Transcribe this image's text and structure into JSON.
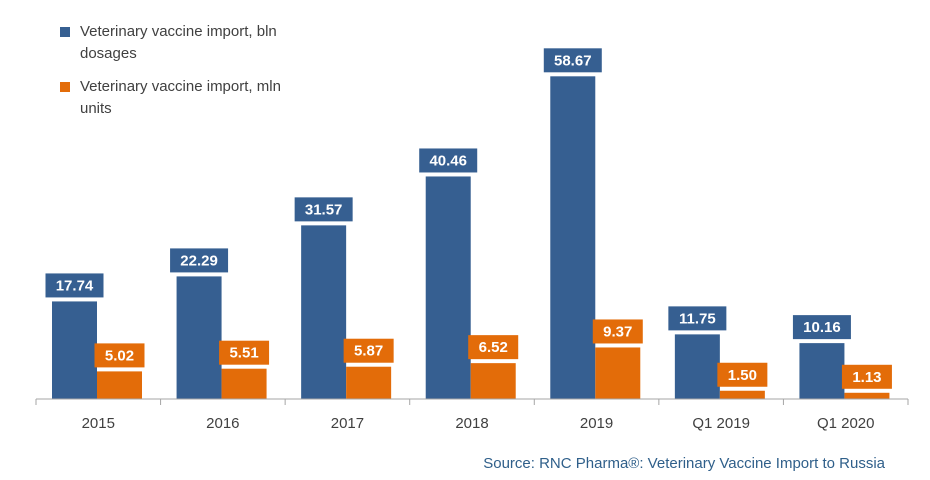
{
  "chart_data": {
    "type": "bar",
    "categories": [
      "2015",
      "2016",
      "2017",
      "2018",
      "2019",
      "Q1 2019",
      "Q1 2020"
    ],
    "series": [
      {
        "name": "Veterinary vaccine import, bln dosages",
        "legend_lines": [
          "Veterinary vaccine import, bln",
          "dosages"
        ],
        "color": "#365f91",
        "values": [
          17.74,
          22.29,
          31.57,
          40.46,
          58.67,
          11.75,
          10.16
        ],
        "labels": [
          "17.74",
          "22.29",
          "31.57",
          "40.46",
          "58.67",
          "11.75",
          "10.16"
        ]
      },
      {
        "name": "Veterinary vaccine import, mln units",
        "legend_lines": [
          "Veterinary vaccine import, mln",
          "units"
        ],
        "color": "#e36c09",
        "values": [
          5.02,
          5.51,
          5.87,
          6.52,
          9.37,
          1.5,
          1.13
        ],
        "labels": [
          "5.02",
          "5.51",
          "5.87",
          "6.52",
          "9.37",
          "1.50",
          "1.13"
        ]
      }
    ],
    "ylim": [
      0,
      70
    ],
    "legend_position": "top-left",
    "grid": false,
    "source": "Source: RNC Pharma®: Veterinary Vaccine Import to Russia"
  }
}
